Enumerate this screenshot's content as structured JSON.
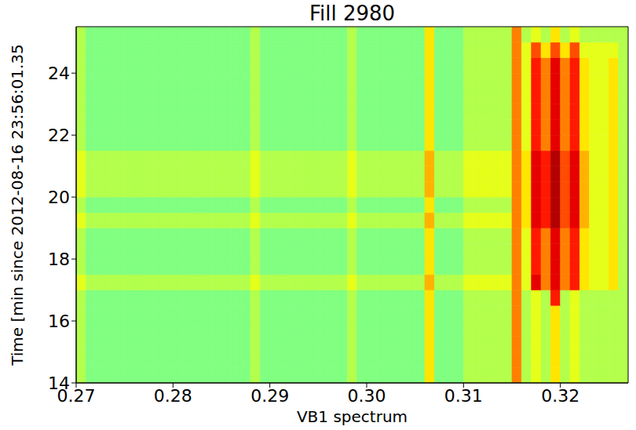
{
  "chart_data": {
    "type": "heatmap",
    "title": "Fill 2980",
    "x_label": "VB1 spectrum",
    "y_label": "Time [min since 2012-08-16 23:56:01.35",
    "xlim": [
      0.27,
      0.327
    ],
    "ylim": [
      14,
      25.5
    ],
    "xticks": [
      0.27,
      0.28,
      0.29,
      {
        "value": 0.3,
        "label": "0.30"
      },
      0.31,
      0.32
    ],
    "yticks": [
      14,
      16,
      18,
      20,
      22,
      24
    ],
    "cells": {
      "x_bins": [
        0.27,
        0.271,
        0.272,
        0.273,
        0.274,
        0.275,
        0.276,
        0.277,
        0.278,
        0.279,
        0.28,
        0.281,
        0.282,
        0.283,
        0.284,
        0.285,
        0.286,
        0.287,
        0.288,
        0.289,
        0.29,
        0.291,
        0.292,
        0.293,
        0.294,
        0.295,
        0.296,
        0.297,
        0.298,
        0.299,
        0.3,
        0.301,
        0.302,
        0.303,
        0.304,
        0.305,
        0.306,
        0.307,
        0.308,
        0.309,
        0.31,
        0.311,
        0.312,
        0.313,
        0.314,
        0.315,
        0.316,
        0.317,
        0.318,
        0.319,
        0.32,
        0.321,
        0.322,
        0.323,
        0.324,
        0.325,
        0.326,
        0.327
      ],
      "y_bins": [
        14,
        14.5,
        15,
        15.5,
        16,
        16.5,
        17,
        17.5,
        18,
        18.5,
        19,
        19.5,
        20,
        20.5,
        21,
        21.5,
        22,
        22.5,
        23,
        23.5,
        24,
        24.5,
        25,
        25.5
      ],
      "values": [
        [
          1,
          0,
          0,
          0,
          0,
          0,
          0,
          0,
          0,
          0,
          0,
          0,
          0,
          0,
          0,
          0,
          0,
          0,
          1,
          0,
          0,
          0,
          0,
          0,
          0,
          0,
          0,
          0,
          1,
          0,
          0,
          0,
          0,
          0,
          0,
          0,
          3,
          0,
          0,
          0,
          1,
          1,
          1,
          1,
          1,
          5,
          1,
          2,
          1,
          3,
          1,
          2,
          1,
          1,
          1,
          1,
          1
        ],
        [
          1,
          0,
          0,
          0,
          0,
          0,
          0,
          0,
          0,
          0,
          0,
          0,
          0,
          0,
          0,
          0,
          0,
          0,
          1,
          0,
          0,
          0,
          0,
          0,
          0,
          0,
          0,
          0,
          1,
          0,
          0,
          0,
          0,
          0,
          0,
          0,
          3,
          0,
          0,
          0,
          1,
          1,
          1,
          1,
          1,
          5,
          1,
          2,
          1,
          3,
          1,
          2,
          1,
          1,
          1,
          1,
          1
        ],
        [
          1,
          0,
          0,
          0,
          0,
          0,
          0,
          0,
          0,
          0,
          0,
          0,
          0,
          0,
          0,
          0,
          0,
          0,
          1,
          0,
          0,
          0,
          0,
          0,
          0,
          0,
          0,
          0,
          1,
          0,
          0,
          0,
          0,
          0,
          0,
          0,
          3,
          0,
          0,
          0,
          1,
          1,
          1,
          1,
          1,
          5,
          1,
          2,
          1,
          3,
          1,
          2,
          1,
          1,
          1,
          1,
          1
        ],
        [
          1,
          0,
          0,
          0,
          0,
          0,
          0,
          0,
          0,
          0,
          0,
          0,
          0,
          0,
          0,
          0,
          0,
          0,
          1,
          0,
          0,
          0,
          0,
          0,
          0,
          0,
          0,
          0,
          1,
          0,
          0,
          0,
          0,
          0,
          0,
          0,
          3,
          0,
          0,
          0,
          1,
          1,
          1,
          1,
          1,
          5,
          1,
          2,
          1,
          3,
          1,
          2,
          1,
          1,
          1,
          1,
          1
        ],
        [
          1,
          0,
          0,
          0,
          0,
          0,
          0,
          0,
          0,
          0,
          0,
          0,
          0,
          0,
          0,
          0,
          0,
          0,
          1,
          0,
          0,
          0,
          0,
          0,
          0,
          0,
          0,
          0,
          1,
          0,
          0,
          0,
          0,
          0,
          0,
          0,
          3,
          0,
          0,
          0,
          1,
          1,
          1,
          1,
          1,
          5,
          1,
          2,
          1,
          3,
          1,
          2,
          1,
          1,
          1,
          1,
          1
        ],
        [
          1,
          0,
          0,
          0,
          0,
          0,
          0,
          0,
          0,
          0,
          0,
          0,
          0,
          0,
          0,
          0,
          0,
          0,
          1,
          0,
          0,
          0,
          0,
          0,
          0,
          0,
          0,
          0,
          1,
          0,
          0,
          0,
          0,
          0,
          0,
          0,
          3,
          0,
          0,
          0,
          1,
          1,
          1,
          1,
          1,
          5,
          1,
          2,
          1,
          7,
          1,
          2,
          1,
          1,
          1,
          1,
          1
        ],
        [
          2,
          1,
          1,
          1,
          1,
          1,
          1,
          1,
          1,
          1,
          1,
          1,
          1,
          1,
          1,
          1,
          1,
          1,
          2,
          1,
          1,
          1,
          1,
          1,
          1,
          1,
          1,
          1,
          2,
          1,
          1,
          1,
          1,
          1,
          1,
          1,
          4,
          1,
          1,
          1,
          2,
          2,
          2,
          2,
          2,
          5,
          2,
          8,
          5,
          8,
          5,
          7,
          3,
          2,
          2,
          3,
          1
        ],
        [
          1,
          0,
          0,
          0,
          0,
          0,
          0,
          0,
          0,
          0,
          0,
          0,
          0,
          0,
          0,
          0,
          0,
          0,
          1,
          0,
          0,
          0,
          0,
          0,
          0,
          0,
          0,
          0,
          1,
          0,
          0,
          0,
          0,
          0,
          0,
          0,
          3,
          0,
          0,
          0,
          1,
          1,
          1,
          1,
          1,
          5,
          2,
          7,
          5,
          8,
          5,
          7,
          3,
          2,
          2,
          3,
          1
        ],
        [
          1,
          0,
          0,
          0,
          0,
          0,
          0,
          0,
          0,
          0,
          0,
          0,
          0,
          0,
          0,
          0,
          0,
          0,
          1,
          0,
          0,
          0,
          0,
          0,
          0,
          0,
          0,
          0,
          1,
          0,
          0,
          0,
          0,
          0,
          0,
          0,
          3,
          0,
          0,
          0,
          1,
          1,
          1,
          1,
          1,
          5,
          2,
          7,
          5,
          8,
          5,
          7,
          3,
          2,
          2,
          3,
          1
        ],
        [
          1,
          0,
          0,
          0,
          0,
          0,
          0,
          0,
          0,
          0,
          0,
          0,
          0,
          0,
          0,
          0,
          0,
          0,
          1,
          0,
          0,
          0,
          0,
          0,
          0,
          0,
          0,
          0,
          1,
          0,
          0,
          0,
          0,
          0,
          0,
          0,
          3,
          0,
          0,
          0,
          1,
          1,
          1,
          1,
          1,
          5,
          2,
          7,
          5,
          8,
          5,
          7,
          3,
          2,
          2,
          3,
          1
        ],
        [
          2,
          1,
          1,
          1,
          1,
          1,
          1,
          1,
          1,
          1,
          1,
          1,
          1,
          1,
          1,
          1,
          1,
          1,
          2,
          1,
          1,
          1,
          1,
          1,
          1,
          1,
          1,
          1,
          2,
          1,
          1,
          1,
          1,
          1,
          1,
          1,
          4,
          1,
          1,
          1,
          2,
          2,
          2,
          2,
          2,
          5,
          3,
          8,
          7,
          9,
          6,
          8,
          4,
          2,
          2,
          3,
          1
        ],
        [
          1,
          0,
          0,
          0,
          0,
          0,
          0,
          0,
          0,
          0,
          0,
          0,
          0,
          0,
          0,
          0,
          0,
          0,
          1,
          0,
          0,
          0,
          0,
          0,
          0,
          0,
          0,
          0,
          1,
          0,
          0,
          0,
          0,
          0,
          0,
          0,
          3,
          0,
          0,
          0,
          1,
          1,
          1,
          1,
          1,
          5,
          3,
          8,
          7,
          9,
          6,
          8,
          4,
          2,
          2,
          3,
          1
        ],
        [
          2,
          1,
          1,
          1,
          1,
          1,
          1,
          1,
          1,
          1,
          1,
          1,
          1,
          1,
          1,
          1,
          1,
          1,
          2,
          1,
          1,
          1,
          1,
          1,
          1,
          1,
          1,
          1,
          2,
          1,
          1,
          1,
          1,
          1,
          1,
          1,
          4,
          1,
          1,
          1,
          2,
          2,
          2,
          2,
          2,
          5,
          3,
          8,
          7,
          9,
          6,
          8,
          4,
          2,
          2,
          3,
          1
        ],
        [
          2,
          1,
          1,
          1,
          1,
          1,
          1,
          1,
          1,
          1,
          1,
          1,
          1,
          1,
          1,
          1,
          1,
          1,
          2,
          1,
          1,
          1,
          1,
          1,
          1,
          1,
          1,
          1,
          2,
          1,
          1,
          1,
          1,
          1,
          1,
          1,
          4,
          1,
          1,
          1,
          2,
          2,
          2,
          2,
          2,
          5,
          3,
          8,
          7,
          9,
          6,
          8,
          4,
          2,
          2,
          3,
          1
        ],
        [
          2,
          1,
          1,
          1,
          1,
          1,
          1,
          1,
          1,
          1,
          1,
          1,
          1,
          1,
          1,
          1,
          1,
          1,
          2,
          1,
          1,
          1,
          1,
          1,
          1,
          1,
          1,
          1,
          2,
          1,
          1,
          1,
          1,
          1,
          1,
          1,
          4,
          1,
          1,
          1,
          2,
          2,
          2,
          2,
          2,
          5,
          3,
          8,
          7,
          9,
          6,
          8,
          4,
          2,
          2,
          3,
          1
        ],
        [
          1,
          0,
          0,
          0,
          0,
          0,
          0,
          0,
          0,
          0,
          0,
          0,
          0,
          0,
          0,
          0,
          0,
          0,
          1,
          0,
          0,
          0,
          0,
          0,
          0,
          0,
          0,
          0,
          1,
          0,
          0,
          0,
          0,
          0,
          0,
          0,
          3,
          0,
          0,
          0,
          1,
          1,
          1,
          1,
          1,
          5,
          2,
          7,
          5,
          8,
          5,
          7,
          3,
          2,
          2,
          3,
          1
        ],
        [
          1,
          0,
          0,
          0,
          0,
          0,
          0,
          0,
          0,
          0,
          0,
          0,
          0,
          0,
          0,
          0,
          0,
          0,
          1,
          0,
          0,
          0,
          0,
          0,
          0,
          0,
          0,
          0,
          1,
          0,
          0,
          0,
          0,
          0,
          0,
          0,
          3,
          0,
          0,
          0,
          1,
          1,
          1,
          1,
          1,
          5,
          2,
          7,
          5,
          8,
          5,
          7,
          3,
          2,
          2,
          3,
          1
        ],
        [
          1,
          0,
          0,
          0,
          0,
          0,
          0,
          0,
          0,
          0,
          0,
          0,
          0,
          0,
          0,
          0,
          0,
          0,
          1,
          0,
          0,
          0,
          0,
          0,
          0,
          0,
          0,
          0,
          1,
          0,
          0,
          0,
          0,
          0,
          0,
          0,
          3,
          0,
          0,
          0,
          1,
          1,
          1,
          1,
          1,
          5,
          2,
          7,
          5,
          8,
          5,
          7,
          3,
          2,
          2,
          3,
          1
        ],
        [
          1,
          0,
          0,
          0,
          0,
          0,
          0,
          0,
          0,
          0,
          0,
          0,
          0,
          0,
          0,
          0,
          0,
          0,
          1,
          0,
          0,
          0,
          0,
          0,
          0,
          0,
          0,
          0,
          1,
          0,
          0,
          0,
          0,
          0,
          0,
          0,
          3,
          0,
          0,
          0,
          1,
          1,
          1,
          1,
          1,
          5,
          2,
          7,
          5,
          8,
          5,
          7,
          3,
          2,
          2,
          3,
          1
        ],
        [
          1,
          0,
          0,
          0,
          0,
          0,
          0,
          0,
          0,
          0,
          0,
          0,
          0,
          0,
          0,
          0,
          0,
          0,
          1,
          0,
          0,
          0,
          0,
          0,
          0,
          0,
          0,
          0,
          1,
          0,
          0,
          0,
          0,
          0,
          0,
          0,
          3,
          0,
          0,
          0,
          1,
          1,
          1,
          1,
          1,
          5,
          2,
          7,
          5,
          8,
          5,
          7,
          3,
          2,
          2,
          3,
          1
        ],
        [
          1,
          0,
          0,
          0,
          0,
          0,
          0,
          0,
          0,
          0,
          0,
          0,
          0,
          0,
          0,
          0,
          0,
          0,
          1,
          0,
          0,
          0,
          0,
          0,
          0,
          0,
          0,
          0,
          1,
          0,
          0,
          0,
          0,
          0,
          0,
          0,
          3,
          0,
          0,
          0,
          1,
          1,
          1,
          1,
          1,
          5,
          2,
          7,
          5,
          8,
          5,
          7,
          3,
          2,
          2,
          3,
          1
        ],
        [
          1,
          0,
          0,
          0,
          0,
          0,
          0,
          0,
          0,
          0,
          0,
          0,
          0,
          0,
          0,
          0,
          0,
          0,
          1,
          0,
          0,
          0,
          0,
          0,
          0,
          0,
          0,
          0,
          1,
          0,
          0,
          0,
          0,
          0,
          0,
          0,
          3,
          0,
          0,
          0,
          1,
          1,
          1,
          1,
          1,
          5,
          2,
          6,
          3,
          6,
          3,
          6,
          2,
          2,
          2,
          2,
          1
        ],
        [
          1,
          0,
          0,
          0,
          0,
          0,
          0,
          0,
          0,
          0,
          0,
          0,
          0,
          0,
          0,
          0,
          0,
          0,
          1,
          0,
          0,
          0,
          0,
          0,
          0,
          0,
          0,
          0,
          1,
          0,
          0,
          0,
          0,
          0,
          0,
          0,
          3,
          0,
          0,
          0,
          1,
          1,
          1,
          1,
          1,
          5,
          1,
          2,
          1,
          3,
          1,
          2,
          1,
          1,
          1,
          1,
          1
        ]
      ]
    }
  }
}
